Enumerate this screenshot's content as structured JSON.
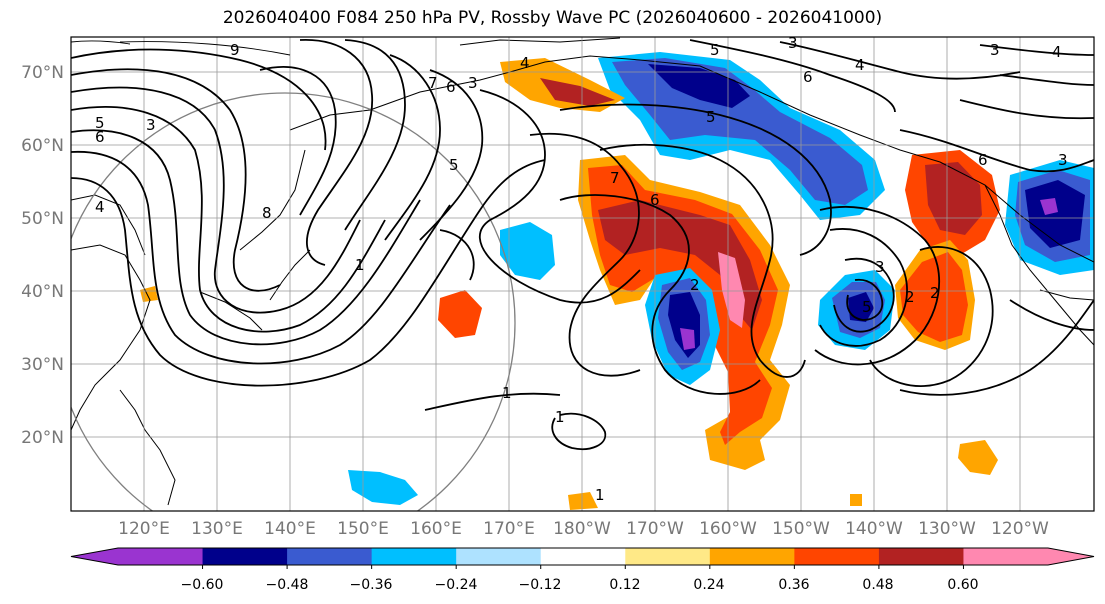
{
  "title": "2026040400 F084 250 hPa PV, Rossby Wave PC (2026040600 - 2026041000)",
  "map": {
    "lat_labels": [
      "70°N",
      "60°N",
      "50°N",
      "40°N",
      "30°N",
      "20°N"
    ],
    "lon_labels": [
      "120°E",
      "130°E",
      "140°E",
      "150°E",
      "160°E",
      "170°E",
      "180°W",
      "170°W",
      "160°W",
      "150°W",
      "140°W",
      "130°W",
      "120°W"
    ],
    "contour_labels": [
      "9",
      "5",
      "6",
      "3",
      "4",
      "8",
      "7",
      "6",
      "5",
      "3",
      "1",
      "1",
      "1",
      "4",
      "7",
      "6",
      "5",
      "3",
      "6",
      "4",
      "5",
      "3",
      "6",
      "3",
      "4",
      "2",
      "2",
      "5",
      "3",
      "2",
      "1"
    ]
  },
  "colorbar": {
    "tick_labels": [
      "−0.60",
      "−0.48",
      "−0.36",
      "−0.24",
      "−0.12",
      "0.12",
      "0.24",
      "0.36",
      "0.48",
      "0.60"
    ],
    "colors": [
      "#9a34d0",
      "#00008b",
      "#3a5bd0",
      "#00bfff",
      "#aee2ff",
      "#ffffff",
      "#ffe987",
      "#ffa500",
      "#ff4500",
      "#b22222",
      "#ff88b0",
      "#ff88b0"
    ]
  }
}
